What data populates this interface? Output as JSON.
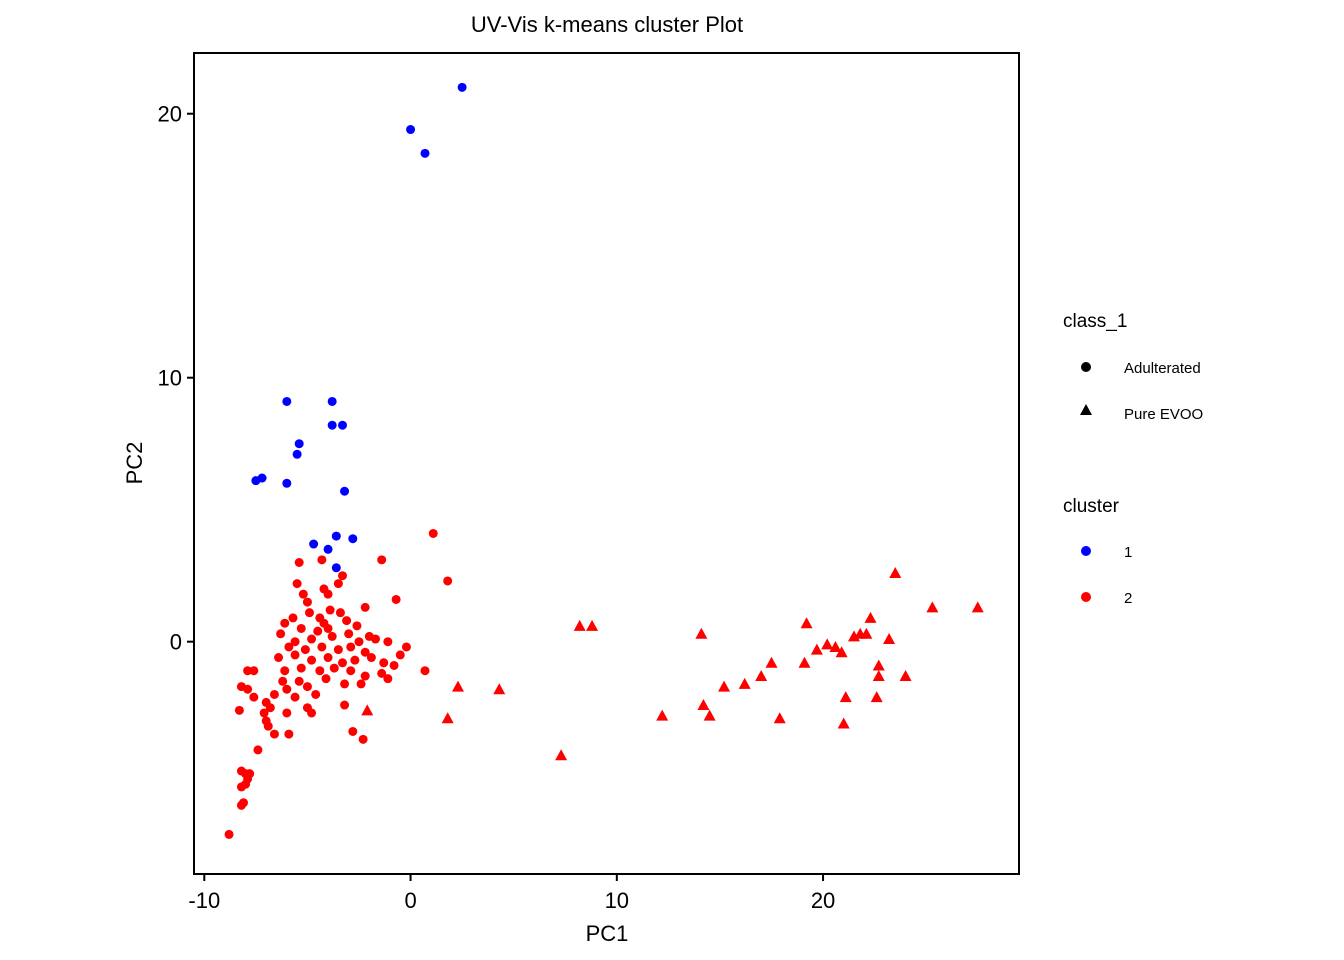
{
  "chart_data": {
    "type": "scatter",
    "title": "UV-Vis k-means cluster Plot",
    "xlabel": "PC1",
    "ylabel": "PC2",
    "xlim": [
      -10.5,
      29.5
    ],
    "ylim": [
      -8.8,
      22.3
    ],
    "x_ticks": [
      -10,
      0,
      10,
      20
    ],
    "y_ticks": [
      0,
      10,
      20
    ],
    "x_tick_labels": [
      "-10",
      "0",
      "10",
      "20"
    ],
    "y_tick_labels": [
      "0",
      "10",
      "20"
    ],
    "grid": false,
    "legend_placement": "right",
    "shape_legend": {
      "title": "class_1",
      "entries": [
        {
          "label": "Adulterated",
          "shape": "circle"
        },
        {
          "label": "Pure EVOO",
          "shape": "triangle"
        }
      ]
    },
    "color_legend": {
      "title": "cluster",
      "entries": [
        {
          "label": "1",
          "color": "#0000ff"
        },
        {
          "label": "2",
          "color": "#ff0000"
        }
      ]
    },
    "series": [
      {
        "cluster": "1",
        "class": "Adulterated",
        "color": "#0000ff",
        "shape": "circle",
        "points": [
          [
            2.5,
            21.0
          ],
          [
            0.0,
            19.4
          ],
          [
            0.7,
            18.5
          ],
          [
            -6.0,
            9.1
          ],
          [
            -3.8,
            9.1
          ],
          [
            -3.8,
            8.2
          ],
          [
            -3.3,
            8.2
          ],
          [
            -5.4,
            7.5
          ],
          [
            -5.5,
            7.1
          ],
          [
            -7.2,
            6.2
          ],
          [
            -7.5,
            6.1
          ],
          [
            -6.0,
            6.0
          ],
          [
            -3.2,
            5.7
          ],
          [
            -3.6,
            4.0
          ],
          [
            -2.8,
            3.9
          ],
          [
            -4.7,
            3.7
          ],
          [
            -4.0,
            3.5
          ],
          [
            -3.6,
            2.8
          ]
        ]
      },
      {
        "cluster": "2",
        "class": "Adulterated",
        "color": "#ff0000",
        "shape": "circle",
        "points": [
          [
            1.1,
            4.1
          ],
          [
            -1.4,
            3.1
          ],
          [
            -5.4,
            3.0
          ],
          [
            -4.3,
            3.1
          ],
          [
            1.8,
            2.3
          ],
          [
            -3.3,
            2.5
          ],
          [
            -3.5,
            2.2
          ],
          [
            -4.2,
            2.0
          ],
          [
            -5.5,
            2.2
          ],
          [
            -5.2,
            1.8
          ],
          [
            -4.0,
            1.8
          ],
          [
            -0.7,
            1.6
          ],
          [
            -5.0,
            1.5
          ],
          [
            -3.9,
            1.2
          ],
          [
            -3.4,
            1.1
          ],
          [
            -2.2,
            1.3
          ],
          [
            -4.9,
            1.1
          ],
          [
            -4.4,
            0.9
          ],
          [
            -5.7,
            0.9
          ],
          [
            -6.1,
            0.7
          ],
          [
            -4.2,
            0.7
          ],
          [
            -3.1,
            0.8
          ],
          [
            -2.6,
            0.6
          ],
          [
            -5.3,
            0.5
          ],
          [
            -4.5,
            0.4
          ],
          [
            -4.0,
            0.5
          ],
          [
            -3.0,
            0.3
          ],
          [
            -2.0,
            0.2
          ],
          [
            -6.3,
            0.3
          ],
          [
            -5.6,
            0.0
          ],
          [
            -4.8,
            0.1
          ],
          [
            -3.8,
            0.2
          ],
          [
            -2.5,
            0.0
          ],
          [
            -1.7,
            0.1
          ],
          [
            -1.1,
            0.0
          ],
          [
            -0.2,
            -0.2
          ],
          [
            -5.9,
            -0.2
          ],
          [
            -5.1,
            -0.3
          ],
          [
            -4.3,
            -0.2
          ],
          [
            -3.5,
            -0.3
          ],
          [
            -2.9,
            -0.2
          ],
          [
            -2.2,
            -0.4
          ],
          [
            -0.5,
            -0.5
          ],
          [
            -6.4,
            -0.6
          ],
          [
            -5.6,
            -0.5
          ],
          [
            -4.8,
            -0.7
          ],
          [
            -4.0,
            -0.6
          ],
          [
            -3.3,
            -0.8
          ],
          [
            -2.7,
            -0.7
          ],
          [
            -1.9,
            -0.6
          ],
          [
            -1.3,
            -0.8
          ],
          [
            -0.8,
            -0.9
          ],
          [
            0.7,
            -1.1
          ],
          [
            -6.1,
            -1.1
          ],
          [
            -5.3,
            -1.0
          ],
          [
            -4.4,
            -1.1
          ],
          [
            -3.7,
            -1.0
          ],
          [
            -2.9,
            -1.1
          ],
          [
            -2.2,
            -1.3
          ],
          [
            -1.1,
            -1.4
          ],
          [
            -7.6,
            -1.1
          ],
          [
            -7.9,
            -1.1
          ],
          [
            -6.2,
            -1.5
          ],
          [
            -5.4,
            -1.5
          ],
          [
            -4.1,
            -1.4
          ],
          [
            -3.2,
            -1.6
          ],
          [
            -2.4,
            -1.6
          ],
          [
            -1.4,
            -1.2
          ],
          [
            -8.2,
            -1.7
          ],
          [
            -7.9,
            -1.8
          ],
          [
            -6.0,
            -1.8
          ],
          [
            -5.0,
            -1.7
          ],
          [
            -7.6,
            -2.1
          ],
          [
            -6.6,
            -2.0
          ],
          [
            -5.6,
            -2.1
          ],
          [
            -4.6,
            -2.0
          ],
          [
            -7.0,
            -2.3
          ],
          [
            -6.8,
            -2.5
          ],
          [
            -5.0,
            -2.5
          ],
          [
            -3.2,
            -2.4
          ],
          [
            -8.3,
            -2.6
          ],
          [
            -7.1,
            -2.7
          ],
          [
            -6.0,
            -2.7
          ],
          [
            -4.8,
            -2.7
          ],
          [
            -7.0,
            -3.0
          ],
          [
            -6.9,
            -3.2
          ],
          [
            -6.6,
            -3.5
          ],
          [
            -5.9,
            -3.5
          ],
          [
            -2.8,
            -3.4
          ],
          [
            -2.3,
            -3.7
          ],
          [
            -7.4,
            -4.1
          ],
          [
            -8.2,
            -4.9
          ],
          [
            -8.0,
            -5.0
          ],
          [
            -7.8,
            -5.0
          ],
          [
            -7.9,
            -5.2
          ],
          [
            -8.0,
            -5.4
          ],
          [
            -8.2,
            -5.5
          ],
          [
            -8.1,
            -6.1
          ],
          [
            -8.2,
            -6.2
          ],
          [
            -8.8,
            -7.3
          ]
        ]
      },
      {
        "cluster": "2",
        "class": "Pure EVOO",
        "color": "#ff0000",
        "shape": "triangle",
        "points": [
          [
            23.5,
            2.6
          ],
          [
            25.3,
            1.3
          ],
          [
            27.5,
            1.3
          ],
          [
            22.3,
            0.9
          ],
          [
            19.2,
            0.7
          ],
          [
            8.2,
            0.6
          ],
          [
            8.8,
            0.6
          ],
          [
            14.1,
            0.3
          ],
          [
            21.5,
            0.2
          ],
          [
            21.8,
            0.3
          ],
          [
            22.1,
            0.3
          ],
          [
            23.2,
            0.1
          ],
          [
            20.2,
            -0.1
          ],
          [
            20.6,
            -0.2
          ],
          [
            20.9,
            -0.4
          ],
          [
            19.7,
            -0.3
          ],
          [
            17.5,
            -0.8
          ],
          [
            19.1,
            -0.8
          ],
          [
            22.7,
            -0.9
          ],
          [
            17.0,
            -1.3
          ],
          [
            22.7,
            -1.3
          ],
          [
            24.0,
            -1.3
          ],
          [
            16.2,
            -1.6
          ],
          [
            15.2,
            -1.7
          ],
          [
            2.3,
            -1.7
          ],
          [
            4.3,
            -1.8
          ],
          [
            21.1,
            -2.1
          ],
          [
            22.6,
            -2.1
          ],
          [
            14.2,
            -2.4
          ],
          [
            -2.1,
            -2.6
          ],
          [
            12.2,
            -2.8
          ],
          [
            14.5,
            -2.8
          ],
          [
            17.9,
            -2.9
          ],
          [
            1.8,
            -2.9
          ],
          [
            21.0,
            -3.1
          ],
          [
            7.3,
            -4.3
          ]
        ]
      }
    ]
  }
}
